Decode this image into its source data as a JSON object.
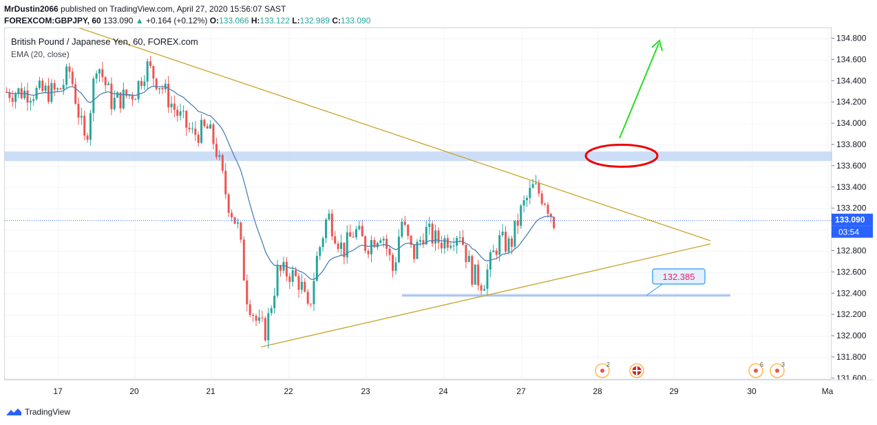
{
  "header": {
    "publisher": "MrDustin2066",
    "published_text": "published on TradingView.com, April 27, 2020 15:56:07 SAST",
    "symbol": "FOREXCOM:GBPJPY, 60",
    "last": "133.090",
    "change": "+0.164 (+0.12%)",
    "open_label": "O:",
    "open": "133.066",
    "high_label": "H:",
    "high": "133.122",
    "low_label": "L:",
    "low": "132.989",
    "close_label": "C:",
    "close": "133.090"
  },
  "legend": {
    "title": "British Pound / Japanese Yen, 60, FOREX.com",
    "indicator": "EMA (20, close)"
  },
  "price_tags": {
    "current": "133.090",
    "countdown": "03:54",
    "annotation": "132.385"
  },
  "footer": {
    "brand": "TradingView"
  },
  "events": [
    {
      "label": "2",
      "type": "event"
    },
    {
      "label": "",
      "type": "flag"
    },
    {
      "label": "6",
      "type": "event"
    },
    {
      "label": "3",
      "type": "event"
    }
  ],
  "colors": {
    "bull": "#26a69a",
    "bear": "#ef5350",
    "ema": "#4a7fb5",
    "trend": "#c9a227",
    "zone": "#bbd2f5",
    "arrow": "#22dd22",
    "circle": "#ee0000"
  },
  "chart_data": {
    "type": "candlestick",
    "symbol": "GBPJPY",
    "y_ticks": [
      "134.800",
      "134.600",
      "134.400",
      "134.200",
      "134.000",
      "133.800",
      "133.600",
      "133.400",
      "133.200",
      "133.000",
      "132.800",
      "132.600",
      "132.400",
      "132.200",
      "132.000",
      "131.800",
      "131.600"
    ],
    "x_ticks": [
      "17",
      "20",
      "21",
      "22",
      "23",
      "24",
      "27",
      "28",
      "29",
      "30",
      "Ma"
    ],
    "ylim": [
      131.6,
      134.9
    ],
    "series": [
      {
        "type": "ohlc",
        "x": [
          "17",
          "20",
          "21",
          "22",
          "23",
          "24",
          "27"
        ],
        "points": [
          [
            134.5,
            134.9,
            133.7,
            134.3
          ],
          [
            134.5,
            134.7,
            133.8,
            134.2
          ],
          [
            134.3,
            134.4,
            133.7,
            133.9
          ],
          [
            133.6,
            133.7,
            131.9,
            132.3
          ],
          [
            132.3,
            133.25,
            132.1,
            133.1
          ],
          [
            133.0,
            133.7,
            132.4,
            132.8
          ],
          [
            132.8,
            133.55,
            132.4,
            133.09
          ]
        ]
      },
      {
        "name": "EMA (20, close)",
        "type": "line",
        "x": [
          "17",
          "20",
          "21",
          "22",
          "23",
          "24",
          "27"
        ],
        "values": [
          134.4,
          134.5,
          134.1,
          132.6,
          132.9,
          132.95,
          133.05
        ]
      }
    ],
    "annotations": [
      {
        "type": "zone",
        "y": [
          133.65,
          133.74
        ]
      },
      {
        "type": "level",
        "y": 132.385,
        "label": "132.385"
      },
      {
        "type": "trendline",
        "from": [
          "16",
          134.95
        ],
        "to": [
          "29",
          132.9
        ]
      },
      {
        "type": "trendline",
        "from": [
          "21",
          131.9
        ],
        "to": [
          "29",
          132.9
        ]
      },
      {
        "type": "arrow",
        "direction": "up"
      }
    ]
  }
}
